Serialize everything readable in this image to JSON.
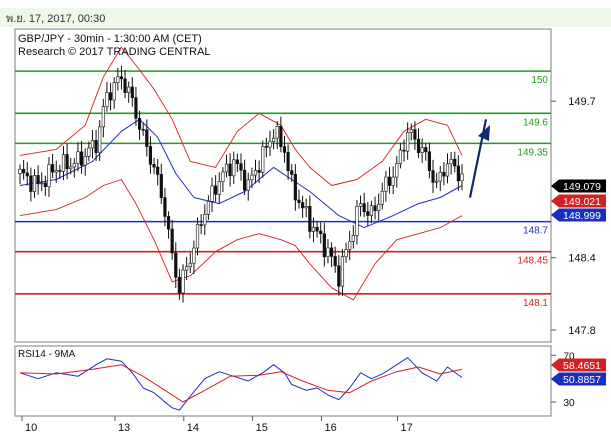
{
  "header": {
    "datetime": "พ.ย. 17, 2017, 00:30"
  },
  "colors": {
    "header_bg": "#eef7e8",
    "panel_border": "#7d7d7d",
    "candle": "#111111",
    "sma": "#1a2fbf",
    "bands": "#d42020",
    "resistance": "#1e9e1e",
    "pivot": "#1a2fbf",
    "support": "#d42020",
    "arrow": "#102a6e",
    "rsi": "#1a2fbf",
    "rsi_ma": "#d42020",
    "price_box": "#000000",
    "red_box": "#d42020",
    "blue_box": "#1a2fbf",
    "rsi_red_box": "#d42020",
    "rsi_blue_box": "#1a2fbf"
  },
  "chart_data": [
    {
      "type": "candlestick",
      "title": "GBP/JPY - 30min - 1:30:00 AM (CET)",
      "subtitle": "Research © 2017 TRADING CENTRAL",
      "ylim": [
        147.7,
        150.3
      ],
      "yticks": [
        "149.7",
        "148.4",
        "147.8"
      ],
      "xticks": [
        "10",
        "13",
        "14",
        "15",
        "16",
        "17"
      ],
      "levels": [
        {
          "label": "150",
          "value": 149.95,
          "role": "resistance"
        },
        {
          "label": "149.6",
          "value": 149.6,
          "role": "resistance"
        },
        {
          "label": "149.35",
          "value": 149.35,
          "role": "resistance"
        },
        {
          "label": "148.7",
          "value": 148.7,
          "role": "pivot"
        },
        {
          "label": "148.45",
          "value": 148.45,
          "role": "support"
        },
        {
          "label": "148.1",
          "value": 148.1,
          "role": "support"
        }
      ],
      "price_labels": [
        {
          "text": "149.079",
          "value": 149.079,
          "style": "price"
        },
        {
          "text": "149.021",
          "value": 149.021,
          "style": "red"
        },
        {
          "text": "148.999",
          "value": 148.999,
          "style": "blue"
        }
      ],
      "close_path": [
        [
          0,
          149.1
        ],
        [
          5,
          149.0
        ],
        [
          10,
          149.15
        ],
        [
          16,
          149.2
        ],
        [
          21,
          149.35
        ],
        [
          24,
          149.75
        ],
        [
          28,
          149.9
        ],
        [
          31,
          149.7
        ],
        [
          34,
          149.4
        ],
        [
          37,
          149.15
        ],
        [
          40,
          148.8
        ],
        [
          42,
          148.4
        ],
        [
          44,
          148.15
        ],
        [
          47,
          148.4
        ],
        [
          51,
          148.8
        ],
        [
          55,
          149.05
        ],
        [
          59,
          149.2
        ],
        [
          63,
          149.0
        ],
        [
          67,
          149.25
        ],
        [
          70,
          149.45
        ],
        [
          73,
          149.3
        ],
        [
          75,
          149.0
        ],
        [
          79,
          148.75
        ],
        [
          82,
          148.6
        ],
        [
          85,
          148.45
        ],
        [
          88,
          148.25
        ],
        [
          91,
          148.55
        ],
        [
          94,
          148.85
        ],
        [
          97,
          148.75
        ],
        [
          100,
          148.95
        ],
        [
          104,
          149.15
        ],
        [
          107,
          149.45
        ],
        [
          111,
          149.3
        ],
        [
          115,
          149.0
        ],
        [
          118,
          149.2
        ],
        [
          122,
          149.08
        ]
      ],
      "sma_path": [
        [
          0,
          149.0
        ],
        [
          10,
          149.05
        ],
        [
          20,
          149.2
        ],
        [
          28,
          149.45
        ],
        [
          33,
          149.55
        ],
        [
          38,
          149.4
        ],
        [
          43,
          149.1
        ],
        [
          48,
          148.9
        ],
        [
          55,
          148.85
        ],
        [
          62,
          148.95
        ],
        [
          70,
          149.15
        ],
        [
          75,
          149.05
        ],
        [
          80,
          148.95
        ],
        [
          88,
          148.75
        ],
        [
          95,
          148.65
        ],
        [
          103,
          148.75
        ],
        [
          110,
          148.85
        ],
        [
          116,
          148.9
        ],
        [
          122,
          149.0
        ]
      ],
      "upper_band_path": [
        [
          0,
          149.25
        ],
        [
          10,
          149.3
        ],
        [
          18,
          149.5
        ],
        [
          23,
          149.9
        ],
        [
          28,
          150.15
        ],
        [
          32,
          150.0
        ],
        [
          37,
          149.8
        ],
        [
          42,
          149.55
        ],
        [
          47,
          149.2
        ],
        [
          54,
          149.15
        ],
        [
          60,
          149.45
        ],
        [
          66,
          149.6
        ],
        [
          72,
          149.5
        ],
        [
          76,
          149.3
        ],
        [
          80,
          149.15
        ],
        [
          86,
          149.0
        ],
        [
          93,
          149.05
        ],
        [
          100,
          149.2
        ],
        [
          106,
          149.45
        ],
        [
          112,
          149.55
        ],
        [
          118,
          149.5
        ],
        [
          122,
          149.25
        ]
      ],
      "lower_band_path": [
        [
          0,
          148.75
        ],
        [
          10,
          148.8
        ],
        [
          18,
          148.9
        ],
        [
          23,
          149.0
        ],
        [
          28,
          149.05
        ],
        [
          32,
          148.85
        ],
        [
          37,
          148.55
        ],
        [
          42,
          148.2
        ],
        [
          47,
          148.25
        ],
        [
          54,
          148.45
        ],
        [
          60,
          148.55
        ],
        [
          66,
          148.6
        ],
        [
          72,
          148.55
        ],
        [
          76,
          148.5
        ],
        [
          80,
          148.35
        ],
        [
          86,
          148.15
        ],
        [
          92,
          148.05
        ],
        [
          98,
          148.35
        ],
        [
          104,
          148.55
        ],
        [
          110,
          148.6
        ],
        [
          116,
          148.65
        ],
        [
          122,
          148.75
        ]
      ]
    },
    {
      "type": "line",
      "title": "RSI14 - 9MA",
      "ylim": [
        18,
        78
      ],
      "yticks": [
        "70",
        "30"
      ],
      "value_labels": [
        {
          "text": "58.4651",
          "value": 58.4651,
          "style": "red"
        },
        {
          "text": "50.8857",
          "value": 50.8857,
          "style": "blue"
        }
      ],
      "rsi_path": [
        [
          0,
          55
        ],
        [
          5,
          50
        ],
        [
          10,
          55
        ],
        [
          16,
          52
        ],
        [
          21,
          62
        ],
        [
          24,
          67
        ],
        [
          28,
          65
        ],
        [
          31,
          55
        ],
        [
          34,
          42
        ],
        [
          37,
          38
        ],
        [
          40,
          30
        ],
        [
          42,
          25
        ],
        [
          44,
          23
        ],
        [
          47,
          35
        ],
        [
          51,
          50
        ],
        [
          55,
          56
        ],
        [
          59,
          52
        ],
        [
          63,
          48
        ],
        [
          67,
          55
        ],
        [
          70,
          62
        ],
        [
          73,
          55
        ],
        [
          75,
          45
        ],
        [
          79,
          40
        ],
        [
          82,
          42
        ],
        [
          85,
          36
        ],
        [
          88,
          32
        ],
        [
          91,
          42
        ],
        [
          94,
          55
        ],
        [
          97,
          50
        ],
        [
          100,
          54
        ],
        [
          104,
          62
        ],
        [
          107,
          68
        ],
        [
          111,
          55
        ],
        [
          115,
          48
        ],
        [
          118,
          60
        ],
        [
          122,
          51
        ]
      ],
      "ma_path": [
        [
          0,
          55
        ],
        [
          10,
          54
        ],
        [
          20,
          58
        ],
        [
          28,
          62
        ],
        [
          34,
          52
        ],
        [
          40,
          40
        ],
        [
          45,
          30
        ],
        [
          51,
          40
        ],
        [
          58,
          52
        ],
        [
          66,
          53
        ],
        [
          72,
          56
        ],
        [
          78,
          48
        ],
        [
          85,
          40
        ],
        [
          91,
          38
        ],
        [
          97,
          48
        ],
        [
          104,
          56
        ],
        [
          110,
          60
        ],
        [
          116,
          54
        ],
        [
          122,
          58
        ]
      ]
    }
  ]
}
